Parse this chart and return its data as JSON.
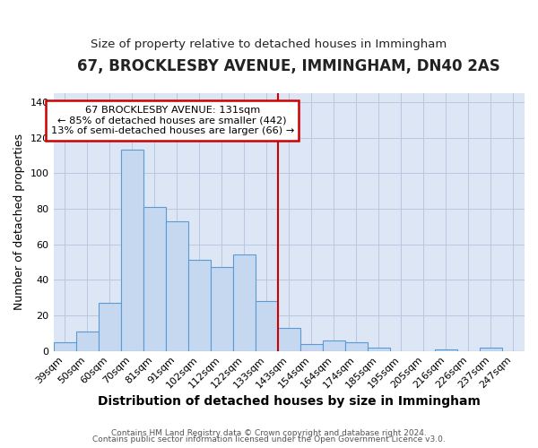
{
  "title1": "67, BROCKLESBY AVENUE, IMMINGHAM, DN40 2AS",
  "title2": "Size of property relative to detached houses in Immingham",
  "xlabel": "Distribution of detached houses by size in Immingham",
  "ylabel": "Number of detached properties",
  "categories": [
    "39sqm",
    "50sqm",
    "60sqm",
    "70sqm",
    "81sqm",
    "91sqm",
    "102sqm",
    "112sqm",
    "122sqm",
    "133sqm",
    "143sqm",
    "154sqm",
    "164sqm",
    "174sqm",
    "185sqm",
    "195sqm",
    "205sqm",
    "216sqm",
    "226sqm",
    "237sqm",
    "247sqm"
  ],
  "values": [
    5,
    11,
    27,
    113,
    81,
    73,
    51,
    47,
    54,
    28,
    13,
    4,
    6,
    5,
    2,
    0,
    0,
    1,
    0,
    2,
    0
  ],
  "bar_color": "#c5d8f0",
  "bar_edge_color": "#5b9bd5",
  "vline_x_index": 9.5,
  "vline_color": "#cc0000",
  "annotation_line1": "67 BROCKLESBY AVENUE: 131sqm",
  "annotation_line2": "← 85% of detached houses are smaller (442)",
  "annotation_line3": "13% of semi-detached houses are larger (66) →",
  "annotation_box_color": "#ffffff",
  "annotation_box_edge": "#cc0000",
  "ylim": [
    0,
    145
  ],
  "background_color": "#dce6f5",
  "footer1": "Contains HM Land Registry data © Crown copyright and database right 2024.",
  "footer2": "Contains public sector information licensed under the Open Government Licence v3.0.",
  "title1_fontsize": 12,
  "title2_fontsize": 9.5,
  "xlabel_fontsize": 10,
  "ylabel_fontsize": 9,
  "tick_fontsize": 8,
  "footer_fontsize": 6.5
}
